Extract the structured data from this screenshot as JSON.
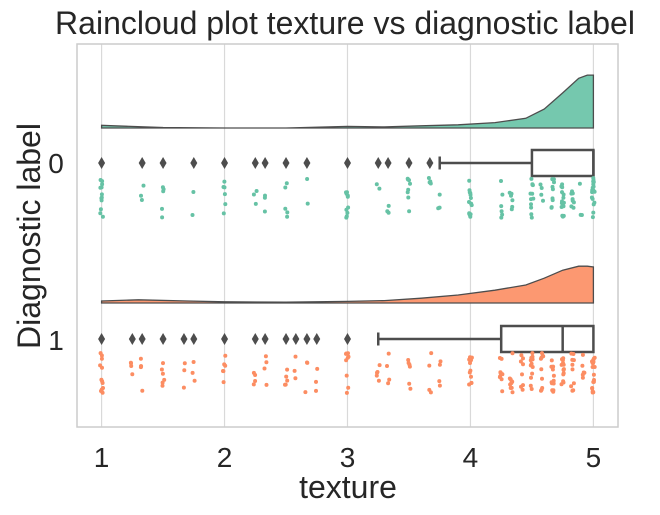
{
  "chart_data": {
    "type": "raincloud",
    "orientation": "horizontal",
    "title": "Raincloud plot texture vs diagnostic label",
    "xlabel": "texture",
    "ylabel": "Diagnostic label",
    "xlim": [
      0.8,
      5.2
    ],
    "xticks": [
      "1",
      "2",
      "3",
      "4",
      "5"
    ],
    "categories": [
      "0",
      "1"
    ],
    "grid": true,
    "colors": {
      "0": "#66c2a5",
      "1": "#fc8d62",
      "box": "#4d4d4d",
      "grid": "#d9d9d9",
      "frame": "#cccccc"
    },
    "series": [
      {
        "category": "0",
        "density": [
          [
            1.0,
            0.05
          ],
          [
            1.1,
            0.04
          ],
          [
            1.5,
            0.01
          ],
          [
            2.0,
            0.0
          ],
          [
            2.5,
            0.0
          ],
          [
            3.0,
            0.03
          ],
          [
            3.3,
            0.02
          ],
          [
            3.6,
            0.04
          ],
          [
            3.9,
            0.06
          ],
          [
            4.2,
            0.1
          ],
          [
            4.45,
            0.18
          ],
          [
            4.6,
            0.35
          ],
          [
            4.75,
            0.65
          ],
          [
            4.88,
            0.92
          ],
          [
            4.95,
            0.98
          ],
          [
            5.0,
            0.98
          ]
        ],
        "box": {
          "q1": 4.5,
          "median": 5.0,
          "q3": 5.0,
          "whisker_low": 3.75,
          "whisker_high": 5.0
        },
        "outliers": [
          1.0,
          1.33,
          1.5,
          1.75,
          2.0,
          2.25,
          2.33,
          2.5,
          2.67,
          3.0,
          3.25,
          3.33,
          3.5,
          3.67
        ],
        "points": [
          [
            1.0,
            12
          ],
          [
            1.33,
            3
          ],
          [
            1.5,
            5
          ],
          [
            1.75,
            2
          ],
          [
            2.0,
            6
          ],
          [
            2.25,
            3
          ],
          [
            2.33,
            3
          ],
          [
            2.5,
            5
          ],
          [
            2.67,
            2
          ],
          [
            3.0,
            10
          ],
          [
            3.25,
            2
          ],
          [
            3.33,
            3
          ],
          [
            3.5,
            8
          ],
          [
            3.67,
            4
          ],
          [
            3.75,
            3
          ],
          [
            4.0,
            14
          ],
          [
            4.25,
            6
          ],
          [
            4.33,
            6
          ],
          [
            4.5,
            12
          ],
          [
            4.58,
            4
          ],
          [
            4.67,
            10
          ],
          [
            4.75,
            14
          ],
          [
            4.83,
            8
          ],
          [
            4.9,
            3
          ],
          [
            5.0,
            18
          ]
        ]
      },
      {
        "category": "1",
        "density": [
          [
            1.0,
            0.05
          ],
          [
            1.3,
            0.08
          ],
          [
            1.7,
            0.05
          ],
          [
            2.0,
            0.03
          ],
          [
            2.5,
            0.02
          ],
          [
            3.0,
            0.04
          ],
          [
            3.3,
            0.06
          ],
          [
            3.6,
            0.12
          ],
          [
            3.9,
            0.2
          ],
          [
            4.2,
            0.32
          ],
          [
            4.45,
            0.45
          ],
          [
            4.6,
            0.62
          ],
          [
            4.75,
            0.82
          ],
          [
            4.88,
            0.92
          ],
          [
            4.95,
            0.92
          ],
          [
            5.0,
            0.9
          ]
        ],
        "box": {
          "q1": 4.25,
          "median": 4.75,
          "q3": 5.0,
          "whisker_low": 3.25,
          "whisker_high": 5.0
        },
        "outliers": [
          1.0,
          1.25,
          1.33,
          1.5,
          1.67,
          1.75,
          2.0,
          2.25,
          2.33,
          2.5,
          2.58,
          2.67,
          2.75,
          3.0
        ],
        "points": [
          [
            1.0,
            12
          ],
          [
            1.25,
            4
          ],
          [
            1.33,
            5
          ],
          [
            1.5,
            6
          ],
          [
            1.67,
            3
          ],
          [
            1.75,
            3
          ],
          [
            2.0,
            6
          ],
          [
            2.25,
            4
          ],
          [
            2.33,
            4
          ],
          [
            2.5,
            5
          ],
          [
            2.58,
            3
          ],
          [
            2.67,
            3
          ],
          [
            2.75,
            3
          ],
          [
            3.0,
            9
          ],
          [
            3.25,
            5
          ],
          [
            3.33,
            4
          ],
          [
            3.5,
            6
          ],
          [
            3.67,
            4
          ],
          [
            3.75,
            4
          ],
          [
            4.0,
            14
          ],
          [
            4.25,
            10
          ],
          [
            4.33,
            10
          ],
          [
            4.42,
            8
          ],
          [
            4.5,
            12
          ],
          [
            4.58,
            10
          ],
          [
            4.67,
            12
          ],
          [
            4.75,
            14
          ],
          [
            4.83,
            10
          ],
          [
            4.92,
            6
          ],
          [
            5.0,
            18
          ]
        ]
      }
    ]
  }
}
